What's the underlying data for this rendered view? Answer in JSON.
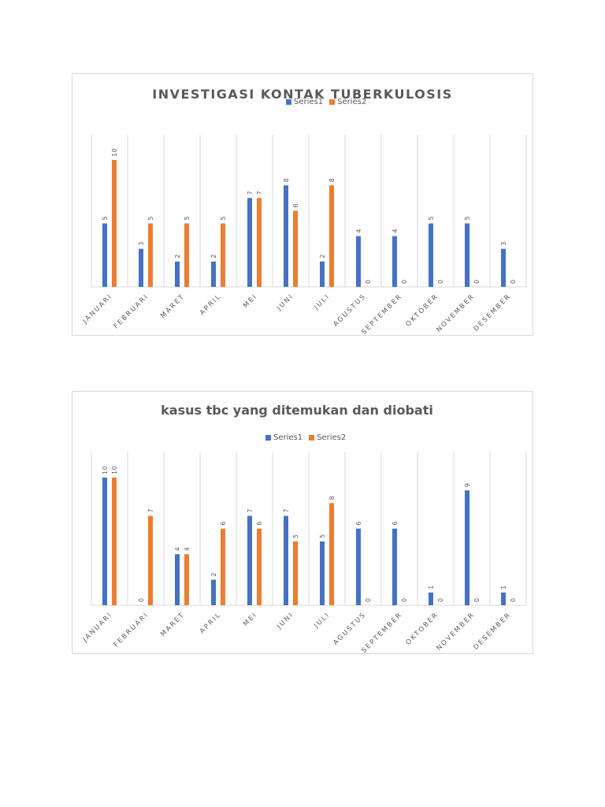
{
  "colors": {
    "series1": "#4472c4",
    "series2": "#ed7d31",
    "grid": "#d9d9d9",
    "text": "#595959"
  },
  "chart_data": [
    {
      "type": "bar",
      "title": "INVESTIGASI KONTAK TUBERKULOSIS",
      "categories": [
        "JANUARI",
        "FEBRUARI",
        "MARET",
        "APRIL",
        "MEI",
        "JUNI",
        "JULI",
        "AGUSTUS",
        "SEPTEMBER",
        "OKTOBER",
        "NOVEMBER",
        "DESEMBER"
      ],
      "series": [
        {
          "name": "Series1",
          "values": [
            5,
            3,
            2,
            2,
            7,
            8,
            2,
            4,
            4,
            5,
            5,
            3
          ]
        },
        {
          "name": "Series2",
          "values": [
            10,
            5,
            5,
            5,
            7,
            6,
            8,
            0,
            0,
            0,
            0,
            0
          ]
        }
      ],
      "ylim": [
        0,
        10
      ],
      "grid": true,
      "legend": "top"
    },
    {
      "type": "bar",
      "title": "kasus tbc yang ditemukan dan diobati",
      "categories": [
        "JANUARI",
        "FEBRUARI",
        "MARET",
        "APRIL",
        "MEI",
        "JUNI",
        "JULI",
        "AGUSTUS",
        "SEPTEMBER",
        "OKTOBER",
        "NOVEMBER",
        "DESEMBER"
      ],
      "series": [
        {
          "name": "Series1",
          "values": [
            10,
            0,
            4,
            2,
            7,
            7,
            5,
            6,
            6,
            1,
            9,
            1
          ]
        },
        {
          "name": "Series2",
          "values": [
            10,
            7,
            4,
            6,
            6,
            5,
            8,
            0,
            0,
            0,
            0,
            0
          ]
        }
      ],
      "ylim": [
        0,
        10
      ],
      "grid": true,
      "legend": "top"
    }
  ]
}
